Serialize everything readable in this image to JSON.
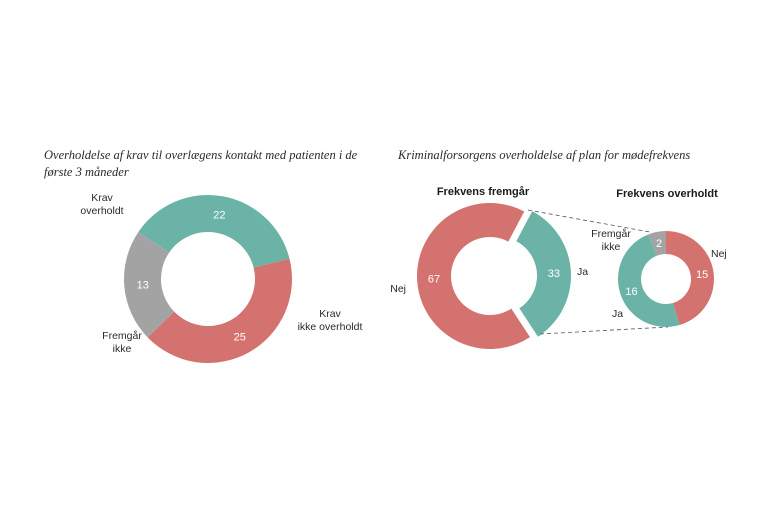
{
  "left_title": "Overholdelse af krav til overlægens kontakt med patienten i de første 3 måneder",
  "right_title": "Kriminalforsorgens overholdelse af plan for mødefrekvens",
  "colors": {
    "teal": "#6bb3a6",
    "red": "#d4726f",
    "gray": "#a3a3a3"
  },
  "chart_data": [
    {
      "type": "pie",
      "title": "Overholdelse af krav til overlægens kontakt med patienten i de første 3 måneder",
      "labels": [
        "Krav overholdt",
        "Krav ikke overholdt",
        "Fremgår ikke"
      ],
      "values": [
        22,
        25,
        13
      ],
      "colors": [
        "#6bb3a6",
        "#d4726f",
        "#a3a3a3"
      ]
    },
    {
      "type": "pie",
      "title": "Frekvens fremgår",
      "labels": [
        "Ja",
        "Nej"
      ],
      "values": [
        33,
        67
      ],
      "colors": [
        "#6bb3a6",
        "#d4726f"
      ]
    },
    {
      "type": "pie",
      "title": "Frekvens overholdt",
      "labels": [
        "Nej",
        "Ja",
        "Fremgår ikke"
      ],
      "values": [
        15,
        16,
        2
      ],
      "colors": [
        "#d4726f",
        "#6bb3a6",
        "#a3a3a3"
      ]
    }
  ]
}
